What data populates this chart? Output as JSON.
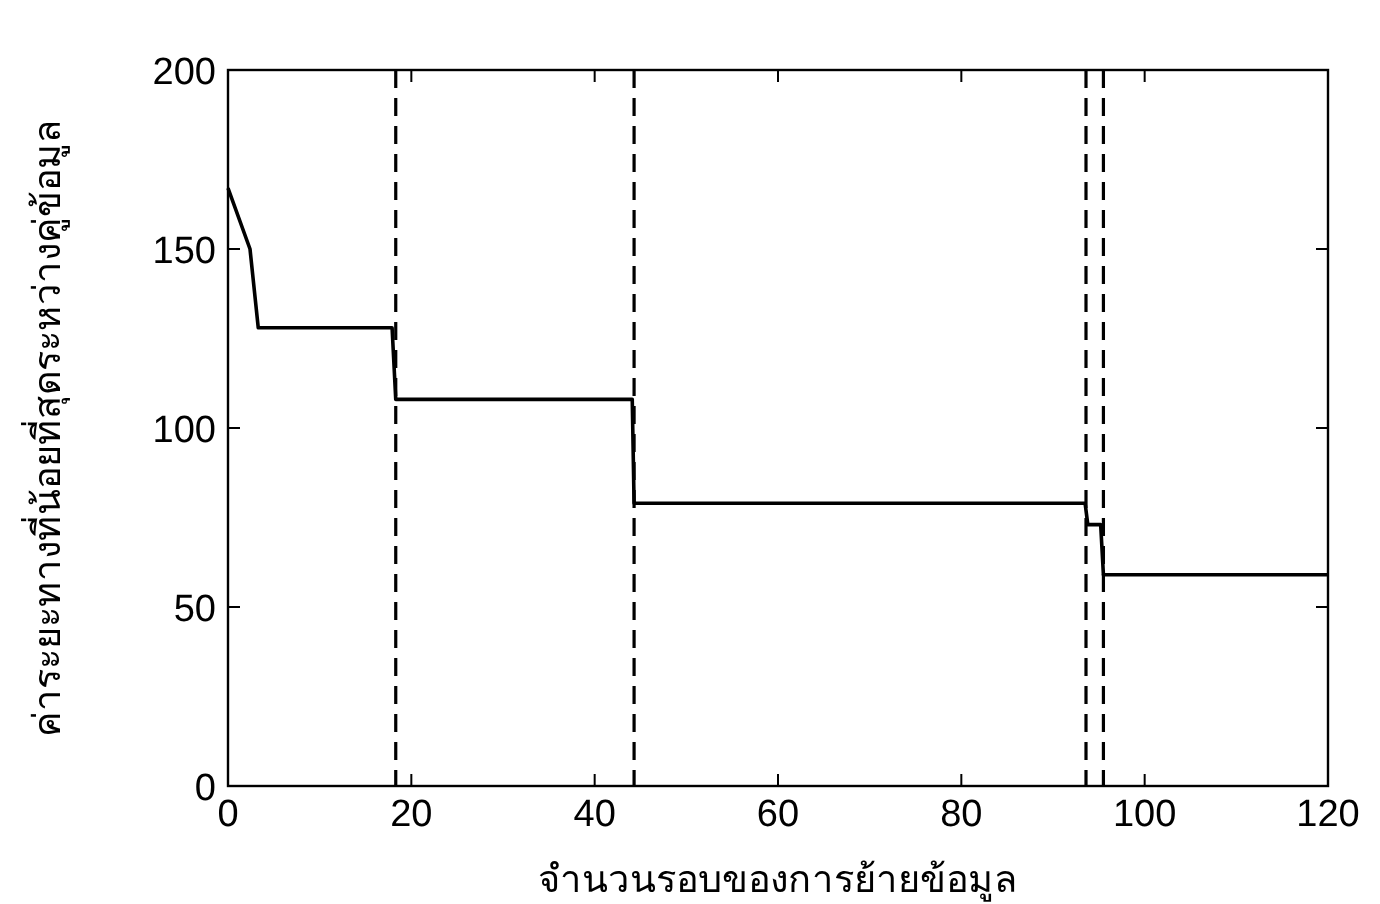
{
  "chart_data": {
    "type": "line",
    "xlabel": "จำนวนรอบของการย้ายข้อมูล",
    "ylabel": "ค่าระยะทางที่น้อยที่สุดระหว่างคู่ข้อมูล",
    "x": [
      0,
      2.4,
      3.3,
      17.9,
      18.3,
      44.1,
      44.3,
      93.5,
      93.8,
      95.2,
      95.5,
      120
    ],
    "series": [
      {
        "color": "#000000",
        "values": [
          167,
          150,
          128,
          128,
          108,
          108,
          79,
          79,
          73,
          73,
          59,
          59
        ]
      }
    ],
    "xlim": [
      0,
      120
    ],
    "ylim": [
      0,
      200
    ],
    "xticks": [
      0,
      20,
      40,
      60,
      80,
      100,
      120
    ],
    "yticks": [
      0,
      50,
      100,
      150,
      200
    ],
    "ref_lines": [
      {
        "axis": "x",
        "value": 18.3,
        "line_style": "dashed",
        "color": "#000000"
      },
      {
        "axis": "x",
        "value": 44.3,
        "line_style": "dashed",
        "color": "#000000"
      },
      {
        "axis": "x",
        "value": 93.6,
        "line_style": "dashed",
        "color": "#000000"
      },
      {
        "axis": "x",
        "value": 95.5,
        "line_style": "dashed",
        "color": "#000000"
      }
    ],
    "marker": "none",
    "line_style": "solid"
  }
}
